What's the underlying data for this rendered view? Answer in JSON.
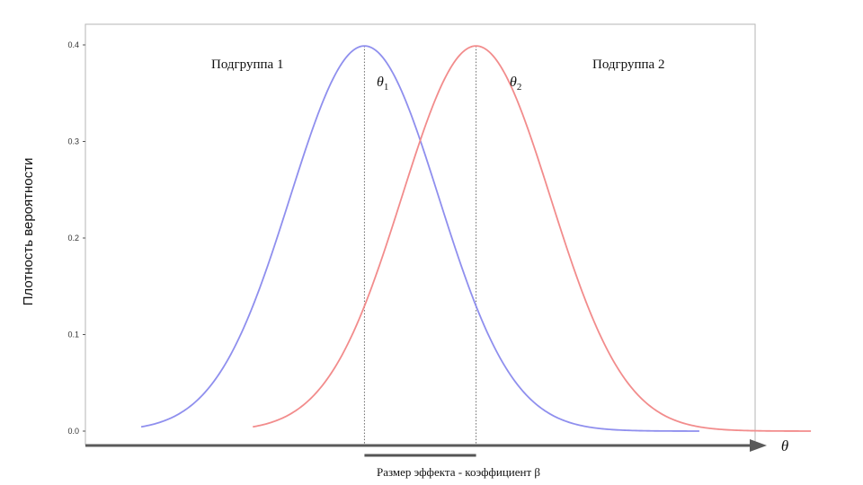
{
  "chart_data": {
    "type": "line",
    "ylabel": "Плотность вероятности",
    "xlabel": "θ",
    "yticks": [
      "0.0",
      "0.1",
      "0.2",
      "0.3",
      "0.4"
    ],
    "ylim": [
      0,
      0.4
    ],
    "xlim": [
      -4.5,
      4.5
    ],
    "grid": false,
    "series": [
      {
        "name": "Подгруппа 1",
        "mean": -0.75,
        "sd": 1,
        "x_range": [
          -3.75,
          3.75
        ],
        "color": "#8f8fee"
      },
      {
        "name": "Подгруппа 2",
        "mean": 0.75,
        "sd": 1,
        "x_range": [
          -2.25,
          5.25
        ],
        "color": "#f28c8c"
      }
    ],
    "annotations": {
      "theta1": {
        "symbol": "θ",
        "sub": "1",
        "x": -0.75
      },
      "theta2": {
        "symbol": "θ",
        "sub": "2",
        "x": 0.75
      },
      "effect_label": "Размер эффекта - коэффициент β",
      "effect_span": [
        -0.75,
        0.75
      ]
    }
  }
}
